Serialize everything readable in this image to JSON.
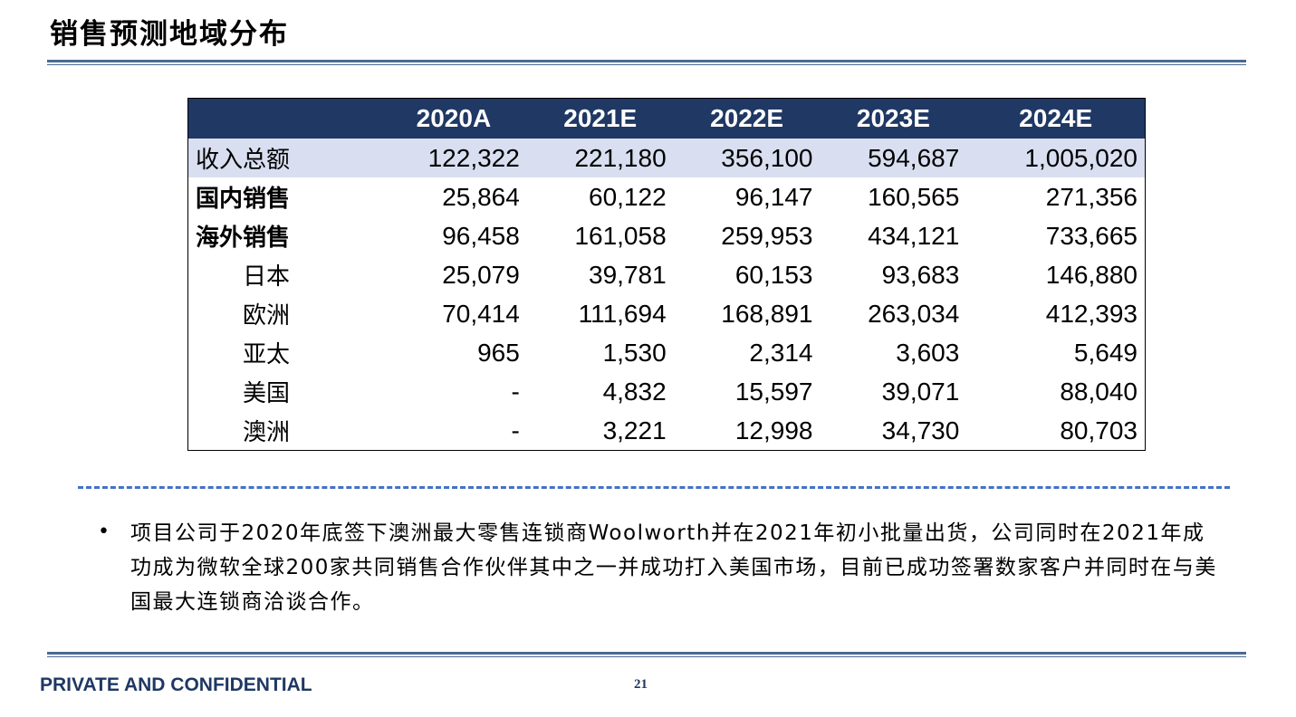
{
  "title": "销售预测地域分布",
  "table": {
    "columns": [
      "2020A",
      "2021E",
      "2022E",
      "2023E",
      "2024E"
    ],
    "rows": [
      {
        "label": "收入总额",
        "values": [
          "122,322",
          "221,180",
          "356,100",
          "594,687",
          "1,005,020"
        ]
      },
      {
        "label": "国内销售",
        "values": [
          "25,864",
          "60,122",
          "96,147",
          "160,565",
          "271,356"
        ]
      },
      {
        "label": "海外销售",
        "values": [
          "96,458",
          "161,058",
          "259,953",
          "434,121",
          "733,665"
        ]
      },
      {
        "label": "日本",
        "values": [
          "25,079",
          "39,781",
          "60,153",
          "93,683",
          "146,880"
        ]
      },
      {
        "label": "欧洲",
        "values": [
          "70,414",
          "111,694",
          "168,891",
          "263,034",
          "412,393"
        ]
      },
      {
        "label": "亚太",
        "values": [
          "965",
          "1,530",
          "2,314",
          "3,603",
          "5,649"
        ]
      },
      {
        "label": "美国",
        "values": [
          "-",
          "4,832",
          "15,597",
          "39,071",
          "88,040"
        ]
      },
      {
        "label": "澳洲",
        "values": [
          "-",
          "3,221",
          "12,998",
          "34,730",
          "80,703"
        ]
      }
    ]
  },
  "bullet": {
    "marker": "•",
    "text": "项目公司于2020年底签下澳洲最大零售连锁商Woolworth并在2021年初小批量出货，公司同时在2021年成功成为微软全球200家共同销售合作伙伴其中之一并成功打入美国市场，目前已成功签署数家客户并同时在与美国最大连锁商洽谈合作。"
  },
  "footer": {
    "confidential": "PRIVATE AND CONFIDENTIAL",
    "page_number": "21"
  },
  "colors": {
    "header_bg": "#1f3864",
    "highlight_row": "#d9dff0",
    "rule": "#4a6a92",
    "dash": "#4472c4"
  }
}
